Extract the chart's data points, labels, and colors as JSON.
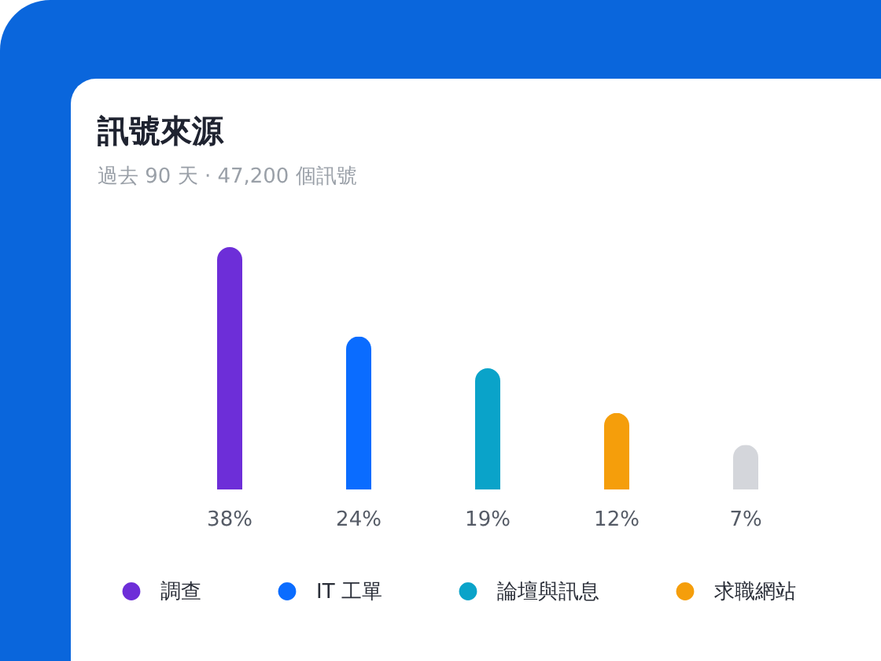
{
  "chart_data": {
    "type": "bar",
    "title": "訊號來源",
    "subtitle": "過去 90 天 · 47,200 個訊號",
    "categories": [
      null,
      null,
      null,
      null,
      null
    ],
    "series": [
      {
        "name": "調查",
        "color": "#6d2ed8",
        "values": [
          38,
          null,
          null,
          null,
          null
        ],
        "value_labels": [
          "38%",
          null,
          null,
          null,
          null
        ]
      },
      {
        "name": "IT 工單",
        "color": "#0a6cff",
        "values": [
          null,
          24,
          null,
          null,
          null
        ],
        "value_labels": [
          null,
          "24%",
          null,
          null,
          null
        ]
      },
      {
        "name": "論壇與訊息",
        "color": "#0aa3c9",
        "values": [
          null,
          null,
          19,
          null,
          null
        ],
        "value_labels": [
          null,
          null,
          "19%",
          null,
          null
        ]
      },
      {
        "name": "求職網站",
        "color": "#f59e0b",
        "values": [
          null,
          null,
          null,
          12,
          null
        ],
        "value_labels": [
          null,
          null,
          null,
          "12%",
          null
        ]
      },
      {
        "color": "#d4d6db",
        "values": [
          null,
          null,
          null,
          null,
          7
        ],
        "value_labels": [
          null,
          null,
          null,
          null,
          "7%"
        ]
      }
    ],
    "stacked": true,
    "legend": "bottom",
    "tick_labels": false,
    "grid": false
  }
}
